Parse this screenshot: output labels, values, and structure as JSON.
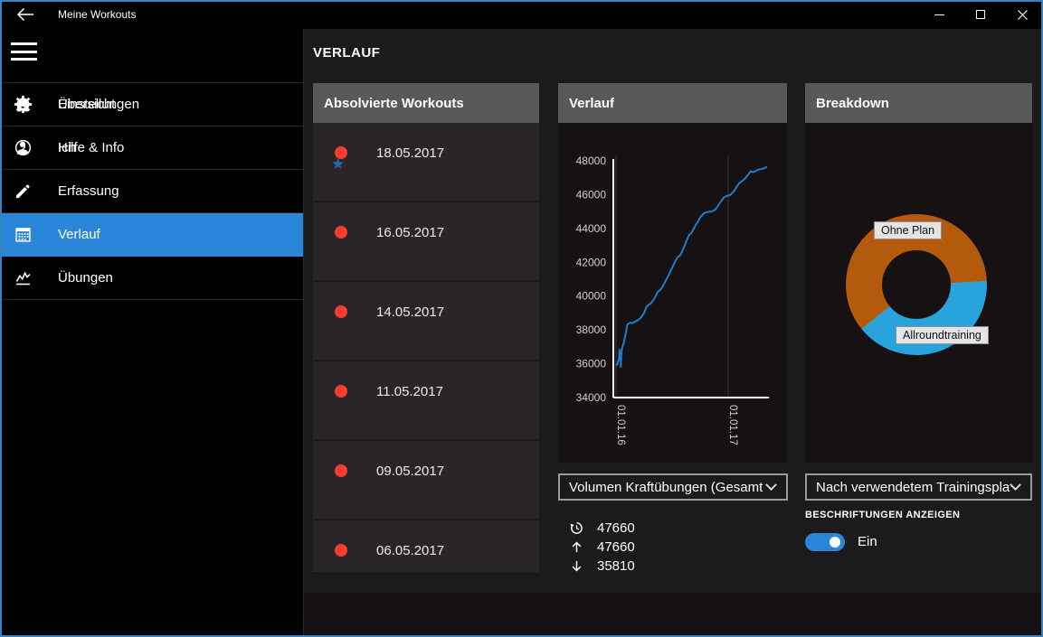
{
  "titlebar": {
    "title": "Meine Workouts"
  },
  "sidebar": {
    "items": [
      {
        "label": "Übersicht",
        "icon": "home",
        "selected": false
      },
      {
        "label": "Ich",
        "icon": "person",
        "selected": false
      },
      {
        "label": "Erfassung",
        "icon": "pencil",
        "selected": false
      },
      {
        "label": "Verlauf",
        "icon": "calendar",
        "selected": true
      },
      {
        "label": "Übungen",
        "icon": "line-chart",
        "selected": false
      }
    ],
    "bottom_items": [
      {
        "label": "Einstellungen",
        "icon": "gear"
      },
      {
        "label": "Hilfe & Info",
        "icon": "help"
      }
    ]
  },
  "page": {
    "title": "VERLAUF"
  },
  "workouts_panel": {
    "header": "Absolvierte Workouts",
    "items": [
      {
        "date": "18.05.2017",
        "starred": true
      },
      {
        "date": "16.05.2017",
        "starred": false
      },
      {
        "date": "14.05.2017",
        "starred": false
      },
      {
        "date": "11.05.2017",
        "starred": false
      },
      {
        "date": "09.05.2017",
        "starred": false
      },
      {
        "date": "06.05.2017",
        "starred": false
      }
    ]
  },
  "verlauf_panel": {
    "header": "Verlauf",
    "dropdown_value": "Volumen Kraftübungen (Gesamt",
    "stats": [
      {
        "icon": "history",
        "value": "47660"
      },
      {
        "icon": "arrow-up",
        "value": "47660"
      },
      {
        "icon": "arrow-down",
        "value": "35810"
      }
    ]
  },
  "breakdown_panel": {
    "header": "Breakdown",
    "dropdown_value": "Nach verwendetem Trainingspla",
    "labels_caption": "BESCHRIFTUNGEN ANZEIGEN",
    "toggle_state": "Ein",
    "toggle_on": true
  },
  "chart_data": [
    {
      "type": "line",
      "title": "Verlauf",
      "ylabel": "Volumen Kraftübungen (Gesamt)",
      "ylim": [
        34000,
        48000
      ],
      "yticks": [
        34000,
        36000,
        38000,
        40000,
        42000,
        44000,
        46000,
        48000
      ],
      "xticks": [
        {
          "label": "01.01.16",
          "t": 0
        },
        {
          "label": "01.01.17",
          "t": 1
        }
      ],
      "grid": "vertical",
      "line_color": "#1e7dcc",
      "axis_color": "#ffffff",
      "grid_color": "#3d3a3a",
      "tick_color": "#cfcfcf",
      "stats": {
        "current": 47660,
        "max": 47660,
        "min": 35810
      },
      "points": [
        [
          0.0,
          35900
        ],
        [
          0.01,
          35960
        ],
        [
          0.02,
          36150
        ],
        [
          0.027,
          36250
        ],
        [
          0.031,
          36830
        ],
        [
          0.034,
          36300
        ],
        [
          0.037,
          36650
        ],
        [
          0.04,
          36500
        ],
        [
          0.043,
          35810
        ],
        [
          0.046,
          36400
        ],
        [
          0.052,
          36850
        ],
        [
          0.06,
          37050
        ],
        [
          0.07,
          37250
        ],
        [
          0.08,
          37600
        ],
        [
          0.09,
          37900
        ],
        [
          0.1,
          38300
        ],
        [
          0.115,
          38380
        ],
        [
          0.13,
          38430
        ],
        [
          0.15,
          38400
        ],
        [
          0.17,
          38500
        ],
        [
          0.19,
          38550
        ],
        [
          0.21,
          38650
        ],
        [
          0.23,
          38800
        ],
        [
          0.25,
          39000
        ],
        [
          0.27,
          39350
        ],
        [
          0.29,
          39500
        ],
        [
          0.31,
          39550
        ],
        [
          0.33,
          39750
        ],
        [
          0.35,
          39950
        ],
        [
          0.37,
          40250
        ],
        [
          0.39,
          40350
        ],
        [
          0.41,
          40500
        ],
        [
          0.43,
          40750
        ],
        [
          0.45,
          41000
        ],
        [
          0.47,
          41250
        ],
        [
          0.49,
          41550
        ],
        [
          0.51,
          41800
        ],
        [
          0.53,
          42100
        ],
        [
          0.55,
          42300
        ],
        [
          0.57,
          42400
        ],
        [
          0.59,
          42650
        ],
        [
          0.61,
          42950
        ],
        [
          0.63,
          43300
        ],
        [
          0.65,
          43600
        ],
        [
          0.67,
          43720
        ],
        [
          0.69,
          43950
        ],
        [
          0.71,
          44200
        ],
        [
          0.73,
          44400
        ],
        [
          0.75,
          44650
        ],
        [
          0.77,
          44800
        ],
        [
          0.79,
          44920
        ],
        [
          0.82,
          44980
        ],
        [
          0.85,
          45000
        ],
        [
          0.88,
          45080
        ],
        [
          0.9,
          45250
        ],
        [
          0.93,
          45550
        ],
        [
          0.96,
          45820
        ],
        [
          0.98,
          45900
        ],
        [
          1.0,
          45950
        ],
        [
          1.02,
          45990
        ],
        [
          1.05,
          46200
        ],
        [
          1.08,
          46500
        ],
        [
          1.1,
          46700
        ],
        [
          1.12,
          46780
        ],
        [
          1.15,
          46950
        ],
        [
          1.18,
          47200
        ],
        [
          1.2,
          47380
        ],
        [
          1.22,
          47330
        ],
        [
          1.24,
          47380
        ],
        [
          1.27,
          47480
        ],
        [
          1.3,
          47520
        ],
        [
          1.32,
          47560
        ],
        [
          1.347,
          47660
        ]
      ]
    },
    {
      "type": "donut",
      "title": "Breakdown",
      "start_angle_deg": 87,
      "segments": [
        {
          "label": "Allroundtraining",
          "percent": 40,
          "color": "#29a3dc"
        },
        {
          "label": "Ohne Plan",
          "percent": 60,
          "color": "#b35a0c"
        }
      ],
      "legend_position": "floating-labels"
    }
  ],
  "command_bar": {
    "icons": [
      "info",
      "sort",
      "multiselect",
      "delete",
      "more"
    ]
  },
  "colors": {
    "accent": "#2a86d8",
    "window_border": "#3583c4",
    "panel_header": "#595959",
    "panel_body": "#161213",
    "list_item": "#2a2627",
    "workout_dot": "#f83c30",
    "workout_star": "#2068a8",
    "line": "#1e7dcc",
    "donut_orange": "#b35a0c",
    "donut_blue": "#29a3dc"
  }
}
